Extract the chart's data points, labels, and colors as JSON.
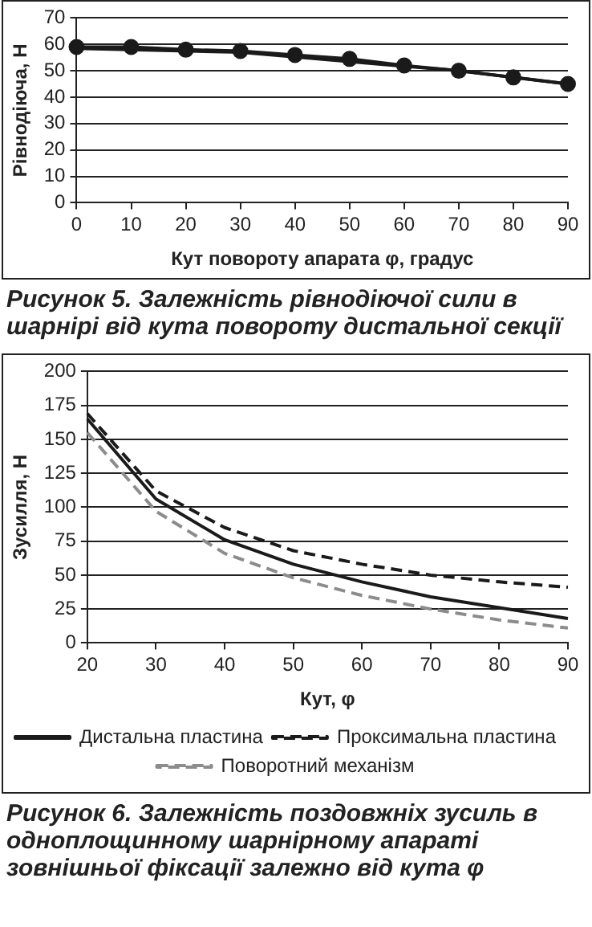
{
  "chart_data": [
    {
      "type": "line",
      "title": "Рисунок 5. Залежність рівнодіючої сили в шарнірі від кута повороту дистальної секції",
      "xlabel": "Кут повороту апарата φ, градус",
      "ylabel": "Рівнодіюча, Н",
      "xlim": [
        0,
        90
      ],
      "xticks": [
        0,
        10,
        20,
        30,
        40,
        50,
        60,
        70,
        80,
        90
      ],
      "ylim": [
        0,
        70
      ],
      "yticks": [
        0,
        10,
        20,
        30,
        40,
        50,
        60,
        70
      ],
      "grid": "y",
      "legend": false,
      "line_style": "solid",
      "series": [
        {
          "color": "#1a1a1a",
          "marker": "circle",
          "x": [
            0,
            10,
            20,
            30,
            40,
            50,
            60,
            70,
            80,
            90
          ],
          "values": [
            59,
            59,
            58,
            57.5,
            56,
            54.5,
            52,
            50,
            47.5,
            45
          ]
        },
        {
          "color": "#1a1a1a",
          "marker": "none",
          "x": [
            0,
            30,
            70,
            90
          ],
          "values": [
            58.5,
            57,
            50,
            45
          ]
        }
      ]
    },
    {
      "type": "line",
      "title": "Рисунок 6. Залежність поздовжніх зусиль в одноплощинному шарнірному апараті зовнішньої фіксації залежно від кута φ",
      "xlabel": "Кут, φ",
      "ylabel": "Зусилля, Н",
      "xlim": [
        20,
        90
      ],
      "xticks": [
        20,
        30,
        40,
        50,
        60,
        70,
        80,
        90
      ],
      "ylim": [
        0,
        200
      ],
      "yticks": [
        0,
        25,
        50,
        75,
        100,
        125,
        150,
        175,
        200
      ],
      "grid": "y",
      "legend": "bottom",
      "marker": "none",
      "x": [
        20,
        30,
        40,
        50,
        60,
        70,
        80,
        90
      ],
      "series": [
        {
          "name": "Дистальна пластина",
          "color": "#1a1a1a",
          "line_style": "solid",
          "values": [
            165,
            106,
            76,
            58,
            45,
            34,
            26,
            18
          ]
        },
        {
          "name": "Проксимальна пластина",
          "color": "#1a1a1a",
          "line_style": "dashed",
          "values": [
            169,
            112,
            85,
            68,
            58,
            50,
            45,
            41
          ]
        },
        {
          "name": "Поворотний механізм",
          "color": "#8c8c8c",
          "line_style": "dashed",
          "values": [
            155,
            97,
            66,
            48,
            35,
            25,
            17,
            11
          ]
        }
      ]
    }
  ]
}
